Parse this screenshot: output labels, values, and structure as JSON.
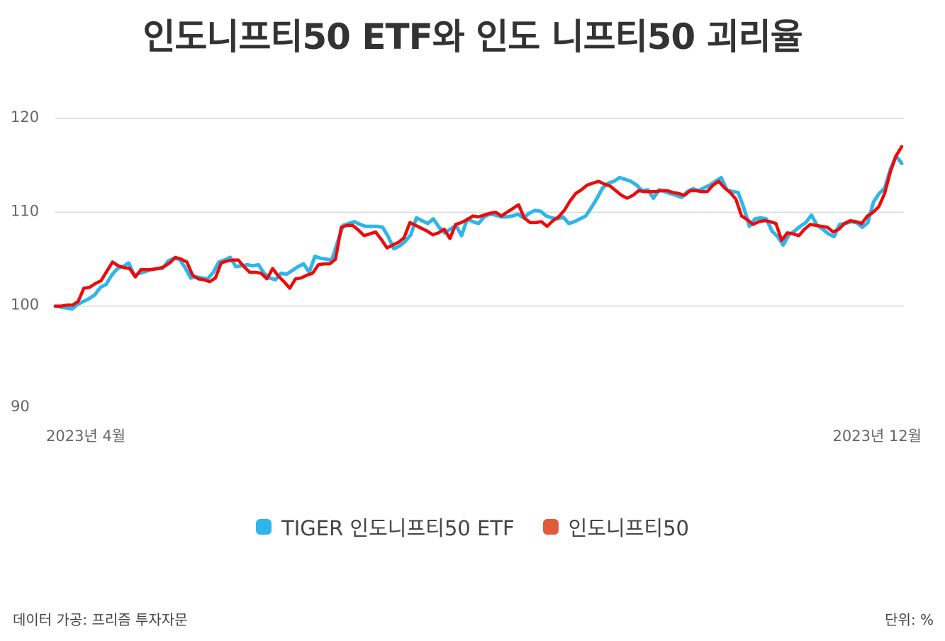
{
  "title": "인도니프티50 ETF와 인도 니프티50 괴리율",
  "source": "데이터 가공: 프리즘 투자자문",
  "unit": "단위: %",
  "colors": {
    "etf": "#2fb5ea",
    "index": "#ee0a0a",
    "index_legend": "#e05a3c",
    "grid": "#d9d9d9",
    "axis_text": "#666666"
  },
  "chart_data": {
    "type": "line",
    "ylim": [
      90,
      120
    ],
    "yticks": [
      90,
      100,
      110,
      120
    ],
    "xlabels": [
      "2023년 4월",
      "2023년 12월"
    ],
    "grid": true,
    "legend_placement": "bottom",
    "series": [
      {
        "name": "TIGER 인도니프티50 ETF",
        "key": "etf",
        "values": [
          100.0,
          99.9,
          99.8,
          99.7,
          100.2,
          100.5,
          100.8,
          101.2,
          102.0,
          102.3,
          103.3,
          104.0,
          104.2,
          104.6,
          103.3,
          103.5,
          103.7,
          103.9,
          104.0,
          104.0,
          104.8,
          105.1,
          105.0,
          104.1,
          103.0,
          103.1,
          103.0,
          102.9,
          103.6,
          104.7,
          104.9,
          105.2,
          104.2,
          104.3,
          104.4,
          104.3,
          104.4,
          103.5,
          103.0,
          102.8,
          103.5,
          103.4,
          103.8,
          104.2,
          104.5,
          103.6,
          105.3,
          105.1,
          105.0,
          104.9,
          106.8,
          108.6,
          108.8,
          109.0,
          108.7,
          108.5,
          108.5,
          108.5,
          108.4,
          107.4,
          106.1,
          106.4,
          106.9,
          107.6,
          109.4,
          109.1,
          108.8,
          109.3,
          108.4,
          107.8,
          108.2,
          108.6,
          107.5,
          109.3,
          109.0,
          108.8,
          109.5,
          109.8,
          109.7,
          109.5,
          109.5,
          109.6,
          109.8,
          109.4,
          109.9,
          110.2,
          110.1,
          109.6,
          109.4,
          109.3,
          109.5,
          108.8,
          109.0,
          109.3,
          109.6,
          110.5,
          111.5,
          112.6,
          113.1,
          113.3,
          113.7,
          113.5,
          113.3,
          112.9,
          112.3,
          112.4,
          111.5,
          112.4,
          112.2,
          112.0,
          111.8,
          111.6,
          112.2,
          112.5,
          112.3,
          112.6,
          112.9,
          113.3,
          113.7,
          112.4,
          112.2,
          112.1,
          110.5,
          108.5,
          109.3,
          109.4,
          109.3,
          108.0,
          107.4,
          106.5,
          107.6,
          108.0,
          108.5,
          108.9,
          109.7,
          108.6,
          108.2,
          107.7,
          107.4,
          108.7,
          108.8,
          109.0,
          108.9,
          108.4,
          108.9,
          111.1,
          112.0,
          112.6,
          114.6,
          116.0,
          115.2
        ]
      },
      {
        "name": "인도니프티50",
        "key": "index",
        "values": [
          100.0,
          100.0,
          100.1,
          100.1,
          100.5,
          101.9,
          102.0,
          102.4,
          102.7,
          103.7,
          104.7,
          104.3,
          104.1,
          104.0,
          103.1,
          103.9,
          103.9,
          103.9,
          104.0,
          104.2,
          104.6,
          105.2,
          105.0,
          104.7,
          103.3,
          102.9,
          102.8,
          102.6,
          103.0,
          104.6,
          104.8,
          104.9,
          104.9,
          104.2,
          103.6,
          103.6,
          103.5,
          102.9,
          104.0,
          103.2,
          102.6,
          101.9,
          102.9,
          103.0,
          103.3,
          103.5,
          104.4,
          104.5,
          104.5,
          105.0,
          108.4,
          108.6,
          108.6,
          108.1,
          107.5,
          107.7,
          107.9,
          107.1,
          106.2,
          106.5,
          106.8,
          107.3,
          108.9,
          108.6,
          108.3,
          108.0,
          107.6,
          107.8,
          108.2,
          107.2,
          108.7,
          108.9,
          109.2,
          109.6,
          109.5,
          109.7,
          109.9,
          110.0,
          109.6,
          110.0,
          110.4,
          110.8,
          109.4,
          108.9,
          108.9,
          109.0,
          108.5,
          109.1,
          109.5,
          110.2,
          111.2,
          112.0,
          112.4,
          112.9,
          113.1,
          113.3,
          113.0,
          112.8,
          112.3,
          111.8,
          111.5,
          111.8,
          112.3,
          112.2,
          112.2,
          112.2,
          112.3,
          112.3,
          112.1,
          112.0,
          111.8,
          112.3,
          112.3,
          112.2,
          112.2,
          112.9,
          113.3,
          112.6,
          112.1,
          111.4,
          109.6,
          109.2,
          108.7,
          109.0,
          109.1,
          109.0,
          108.8,
          107.0,
          107.8,
          107.7,
          107.5,
          108.2,
          108.7,
          108.6,
          108.5,
          108.4,
          107.9,
          108.2,
          108.8,
          109.1,
          109.0,
          108.8,
          109.6,
          110.0,
          110.6,
          112.0,
          114.3,
          116.0,
          117.0
        ]
      }
    ]
  }
}
